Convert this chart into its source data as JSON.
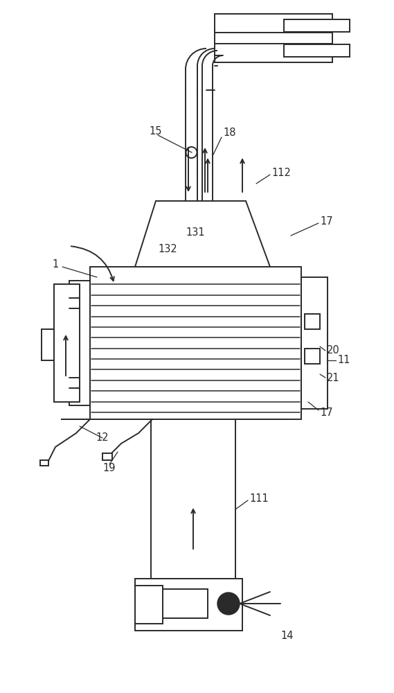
{
  "bg_color": "#ffffff",
  "line_color": "#2a2a2a",
  "lw": 1.4,
  "fig_w": 5.69,
  "fig_h": 10.0,
  "dpi": 100
}
